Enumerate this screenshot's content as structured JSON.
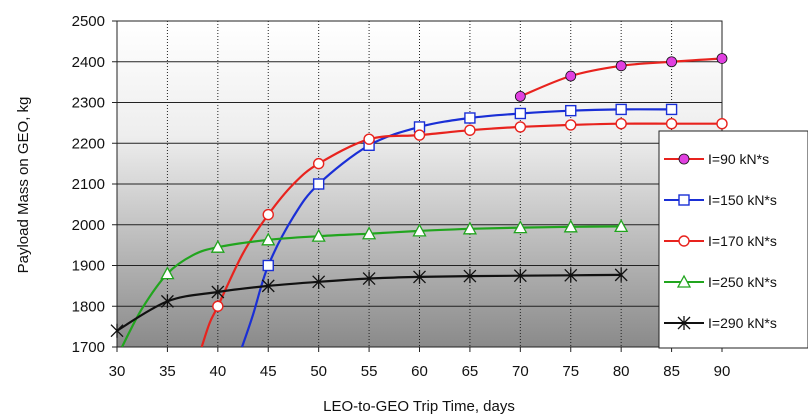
{
  "chart_data": {
    "type": "line",
    "title": "",
    "xlabel": "LEO-to-GEO Trip Time, days",
    "ylabel": "Payload Mass on GEO, kg",
    "xlim": [
      30,
      90
    ],
    "ylim": [
      1700,
      2500
    ],
    "xticks": [
      30,
      35,
      40,
      45,
      50,
      55,
      60,
      65,
      70,
      75,
      80,
      85,
      90
    ],
    "yticks": [
      1700,
      1800,
      1900,
      2000,
      2100,
      2200,
      2300,
      2400,
      2500
    ],
    "grid": true,
    "legend_position": "right",
    "series": [
      {
        "name": "I=90 kN*s",
        "color": "#e8231e",
        "marker": "filled-circle",
        "marker_color": "#e040e0",
        "x": [
          70,
          75,
          80,
          85,
          90
        ],
        "values": [
          2315,
          2365,
          2390,
          2400,
          2408
        ]
      },
      {
        "name": "I=150 kN*s",
        "color": "#1a2fd6",
        "marker": "open-square",
        "x": [
          42.4,
          43.5,
          45,
          47.5,
          50,
          55,
          60,
          65,
          70,
          75,
          80,
          85
        ],
        "values": [
          1700,
          1780,
          1900,
          2020,
          2100,
          2195,
          2240,
          2262,
          2273,
          2280,
          2283,
          2283
        ]
      },
      {
        "name": "I=170 kN*s",
        "color": "#e8231e",
        "marker": "open-circle",
        "x": [
          38.4,
          39.2,
          40,
          42.5,
          45,
          47.5,
          50,
          55,
          60,
          65,
          70,
          75,
          80,
          85,
          90
        ],
        "values": [
          1700,
          1760,
          1800,
          1930,
          2025,
          2100,
          2150,
          2210,
          2220,
          2232,
          2240,
          2245,
          2248,
          2248,
          2248
        ]
      },
      {
        "name": "I=250 kN*s",
        "color": "#21a51e",
        "marker": "open-triangle",
        "x": [
          30.5,
          32.5,
          35,
          37.5,
          40,
          45,
          50,
          55,
          60,
          65,
          70,
          75,
          80
        ],
        "values": [
          1700,
          1795,
          1880,
          1925,
          1945,
          1963,
          1972,
          1978,
          1985,
          1990,
          1993,
          1995,
          1996
        ]
      },
      {
        "name": "I=290 kN*s",
        "color": "#111111",
        "marker": "asterisk",
        "x": [
          30,
          35,
          40,
          45,
          50,
          55,
          60,
          65,
          70,
          75,
          80
        ],
        "values": [
          1740,
          1812,
          1835,
          1850,
          1860,
          1868,
          1872,
          1874,
          1875,
          1876,
          1877
        ]
      }
    ]
  }
}
